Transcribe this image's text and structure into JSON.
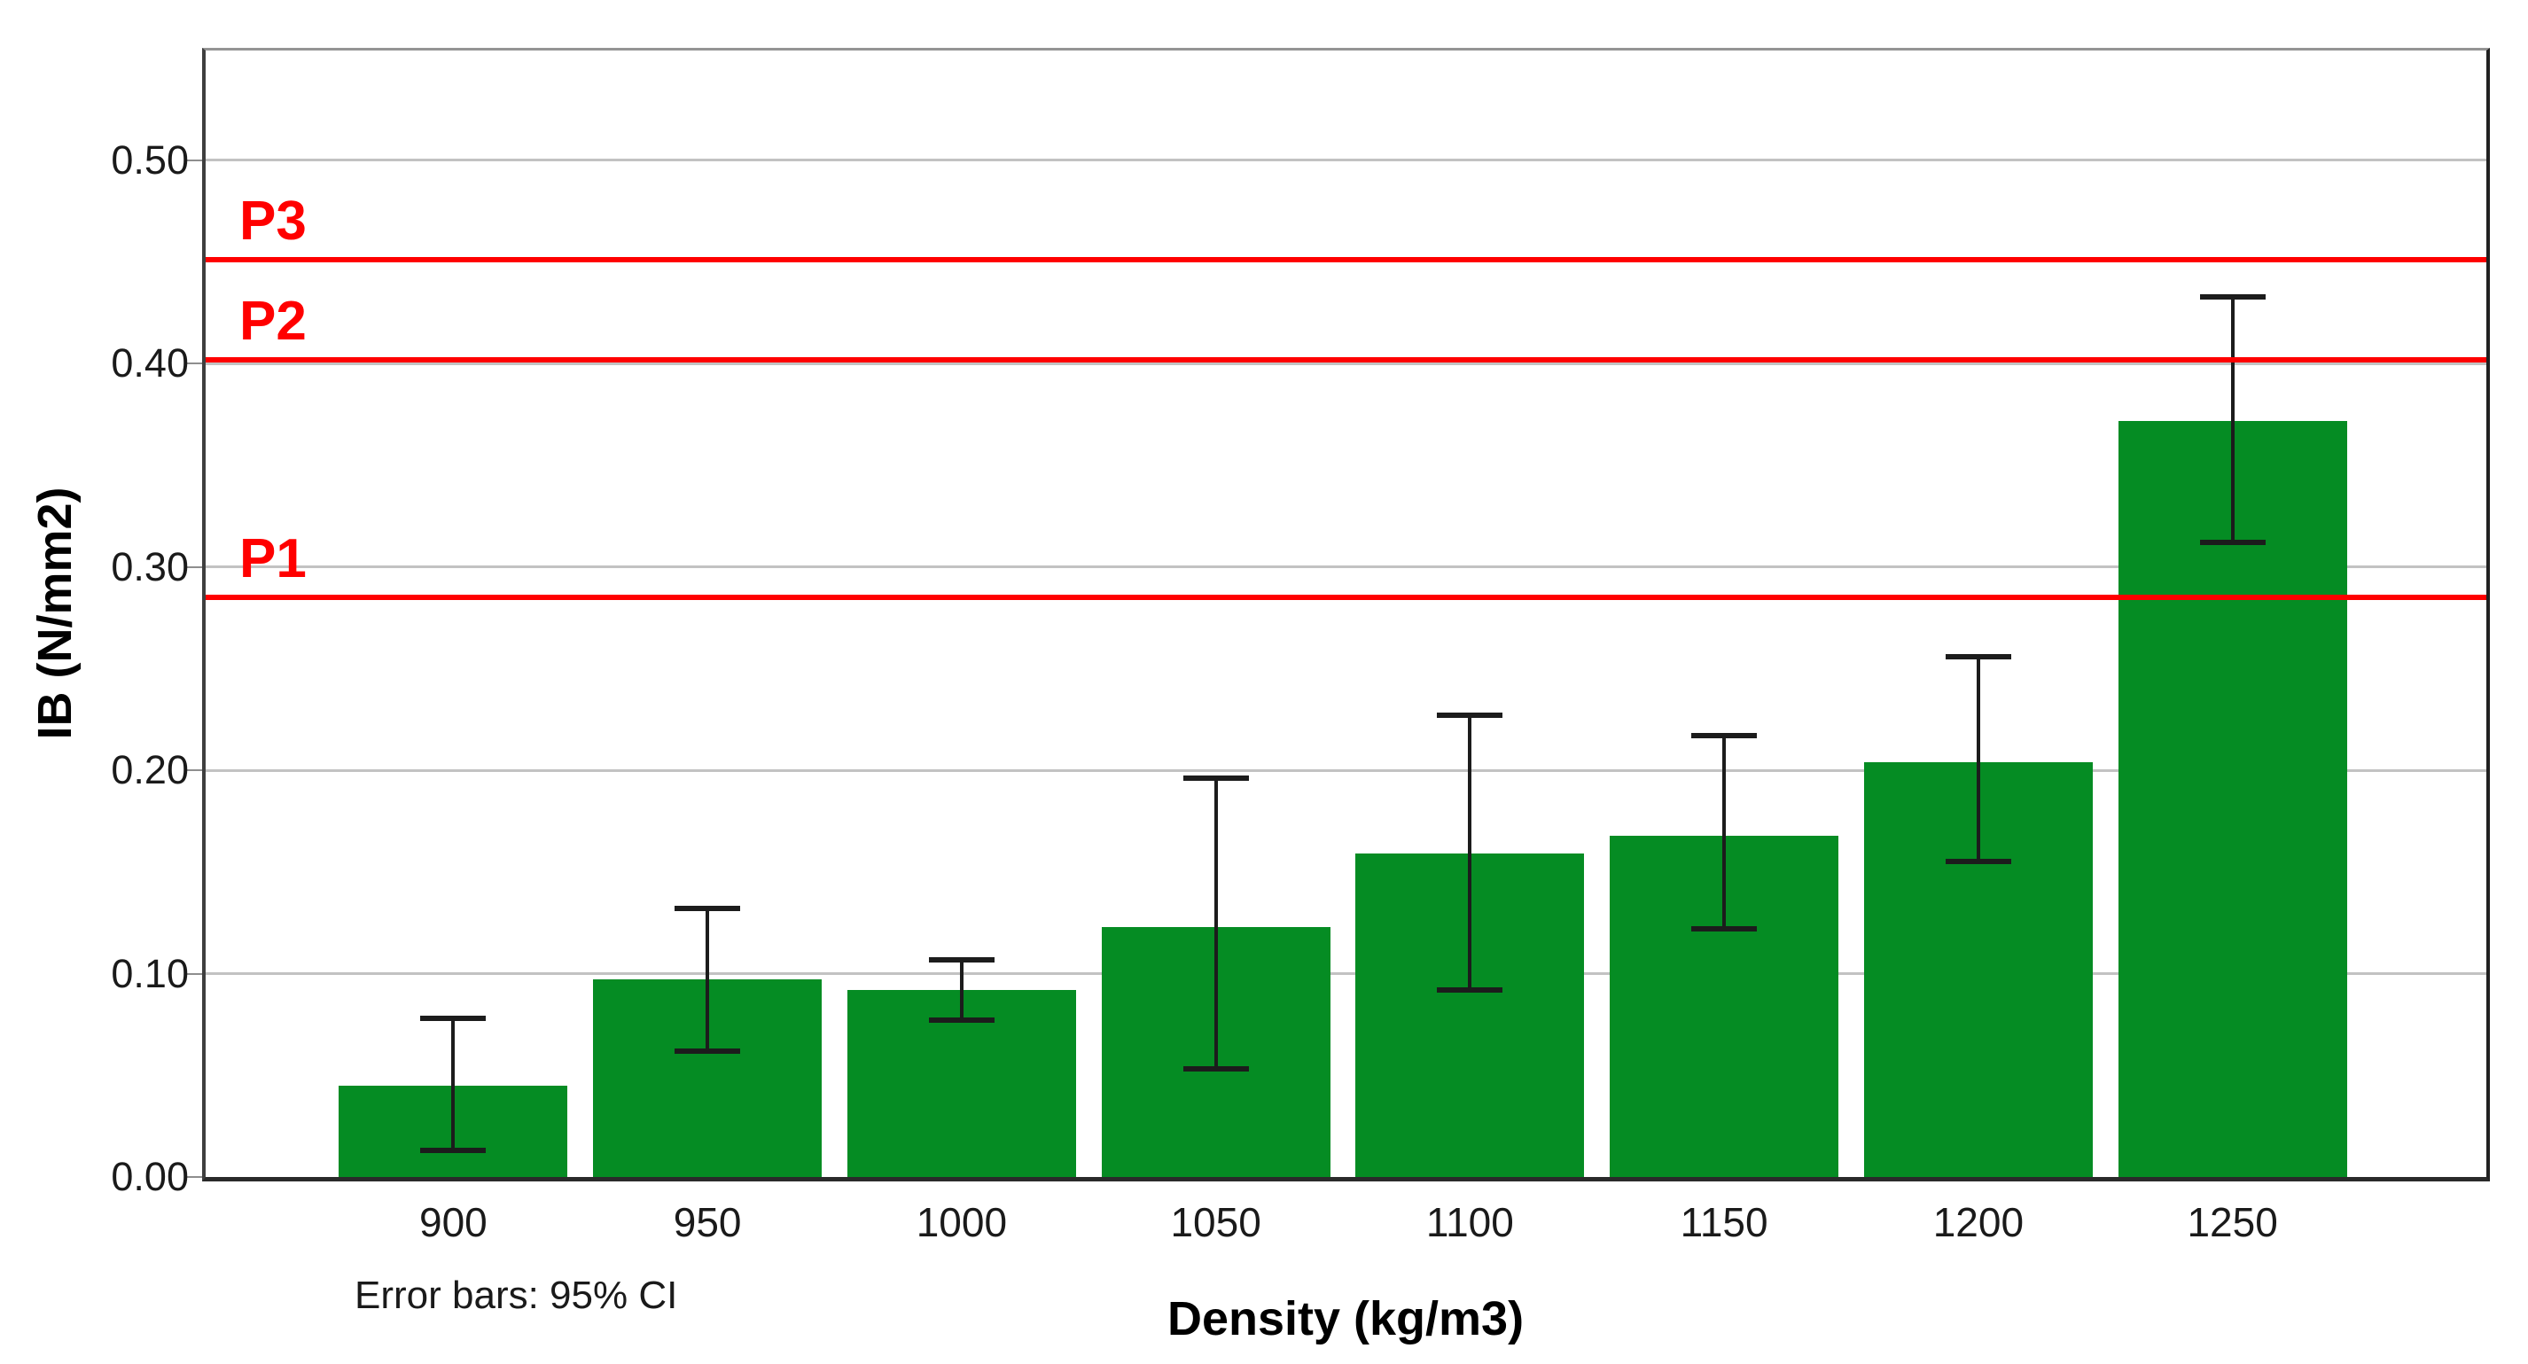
{
  "chart_data": {
    "type": "bar",
    "title": "",
    "xlabel": "Density (kg/m3)",
    "ylabel": "IB (N/mm2)",
    "caption": "Error bars: 95% CI",
    "categories": [
      "900",
      "950",
      "1000",
      "1050",
      "1100",
      "1150",
      "1200",
      "1250"
    ],
    "values": [
      0.045,
      0.097,
      0.092,
      0.123,
      0.159,
      0.168,
      0.204,
      0.372
    ],
    "error_bars": {
      "kind": "95% CI",
      "low": [
        0.013,
        0.062,
        0.077,
        0.053,
        0.092,
        0.122,
        0.155,
        0.312
      ],
      "high": [
        0.078,
        0.132,
        0.107,
        0.196,
        0.227,
        0.217,
        0.256,
        0.433
      ]
    },
    "reference_lines": [
      {
        "label": "P1",
        "value": 0.285
      },
      {
        "label": "P2",
        "value": 0.402
      },
      {
        "label": "P3",
        "value": 0.451
      }
    ],
    "y_axis": {
      "ticks": [
        0.0,
        0.1,
        0.2,
        0.3,
        0.4,
        0.5
      ],
      "tick_labels": [
        "0.00",
        "0.10",
        "0.20",
        "0.30",
        "0.40",
        "0.50"
      ],
      "max": 0.554,
      "grid": true
    },
    "legend_position": "none",
    "colors": {
      "bar": "#058C23",
      "reference_line": "#FF0000",
      "reference_label": "#FF0000",
      "grid": "#C2C2C2",
      "error_bar": "#1C1C1C"
    }
  }
}
